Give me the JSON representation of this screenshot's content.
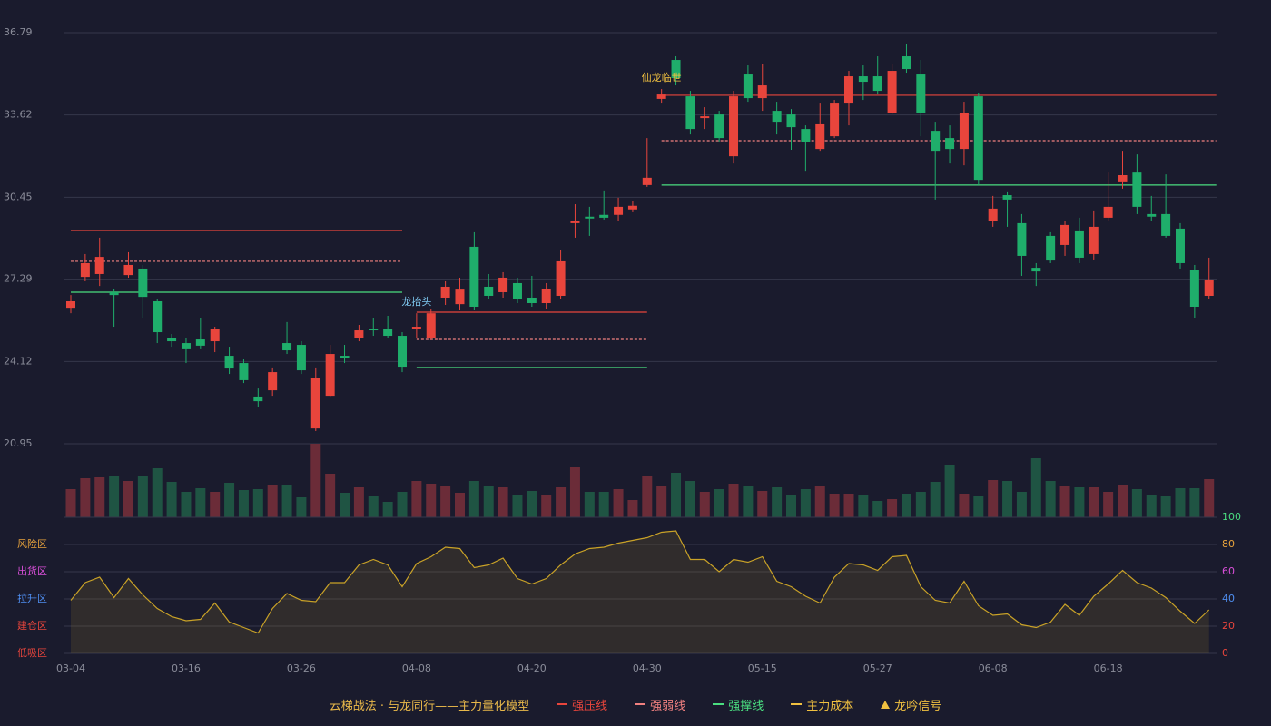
{
  "chart_data": {
    "type": "candlestick",
    "categories": [
      "03-04",
      null,
      null,
      null,
      null,
      null,
      null,
      null,
      "03-16",
      null,
      null,
      null,
      null,
      null,
      null,
      null,
      "03-26",
      null,
      null,
      null,
      null,
      null,
      null,
      null,
      "04-08",
      null,
      null,
      null,
      null,
      null,
      null,
      null,
      "04-20",
      null,
      null,
      null,
      null,
      null,
      null,
      null,
      "04-30",
      null,
      null,
      null,
      null,
      null,
      null,
      null,
      "05-15",
      null,
      null,
      null,
      null,
      null,
      null,
      null,
      "05-27",
      null,
      null,
      null,
      null,
      null,
      null,
      null,
      "06-08",
      null,
      null,
      null,
      null,
      null,
      null,
      null,
      "06-18",
      null,
      null,
      null,
      null,
      null,
      null,
      null
    ],
    "open": [
      26.19,
      27.38,
      27.49,
      26.79,
      27.45,
      27.7,
      26.44,
      25.04,
      24.83,
      24.97,
      24.9,
      24.34,
      24.06,
      22.77,
      23.01,
      24.83,
      24.76,
      21.54,
      22.8,
      24.34,
      25.04,
      25.39,
      25.39,
      25.11,
      25.39,
      25.04,
      26.58,
      26.33,
      28.54,
      27.0,
      26.79,
      27.14,
      26.58,
      26.37,
      26.65,
      29.45,
      29.7,
      29.77,
      29.77,
      29.98,
      30.92,
      34.24,
      35.74,
      34.34,
      33.5,
      33.64,
      32.03,
      35.18,
      34.27,
      33.78,
      33.64,
      33.08,
      32.31,
      32.8,
      34.06,
      35.11,
      35.11,
      33.71,
      35.88,
      35.18,
      33.01,
      32.73,
      32.31,
      34.34,
      29.52,
      30.53,
      29.45,
      27.73,
      28.96,
      28.61,
      29.17,
      28.26,
      29.66,
      31.06,
      31.4,
      29.8,
      29.8,
      29.24,
      27.63,
      26.65
    ],
    "close": [
      26.44,
      27.91,
      28.15,
      26.68,
      27.84,
      26.61,
      25.25,
      24.9,
      24.59,
      24.73,
      25.36,
      23.85,
      23.4,
      22.59,
      23.71,
      24.55,
      23.78,
      23.5,
      24.41,
      24.24,
      25.32,
      25.32,
      25.11,
      23.92,
      25.46,
      25.98,
      27.0,
      26.89,
      26.23,
      26.65,
      27.35,
      26.51,
      26.37,
      26.93,
      27.98,
      29.52,
      29.63,
      29.66,
      30.08,
      30.12,
      31.2,
      34.41,
      35.04,
      33.08,
      33.57,
      32.73,
      34.34,
      34.27,
      34.76,
      33.36,
      33.15,
      32.59,
      33.26,
      34.06,
      35.11,
      34.9,
      34.55,
      35.32,
      35.39,
      33.71,
      32.24,
      32.31,
      33.71,
      31.12,
      30.01,
      30.36,
      28.19,
      27.59,
      28.01,
      29.38,
      28.12,
      29.31,
      30.08,
      31.3,
      30.08,
      29.7,
      28.96,
      27.91,
      26.23,
      27.28
    ],
    "high": [
      26.68,
      28.26,
      28.89,
      26.93,
      28.33,
      27.84,
      26.51,
      25.18,
      25.04,
      25.81,
      25.46,
      24.69,
      24.2,
      23.08,
      23.89,
      25.64,
      24.9,
      23.89,
      24.76,
      24.76,
      25.53,
      25.81,
      25.88,
      25.25,
      25.98,
      26.16,
      27.21,
      27.35,
      29.1,
      27.49,
      27.56,
      27.35,
      27.42,
      27.14,
      28.43,
      30.18,
      30.08,
      30.71,
      30.43,
      30.29,
      32.73,
      34.62,
      35.88,
      34.55,
      33.92,
      33.78,
      34.55,
      35.53,
      35.6,
      34.13,
      33.85,
      33.22,
      34.06,
      34.2,
      35.32,
      35.53,
      35.88,
      35.6,
      36.37,
      35.74,
      33.36,
      33.22,
      34.13,
      34.48,
      30.5,
      30.64,
      29.8,
      27.91,
      29.1,
      29.52,
      29.66,
      29.94,
      31.4,
      32.24,
      32.1,
      30.5,
      31.33,
      29.45,
      27.84,
      28.12
    ],
    "low": [
      25.98,
      27.21,
      27.03,
      25.46,
      27.35,
      25.81,
      24.83,
      24.69,
      24.06,
      24.59,
      24.48,
      23.64,
      23.29,
      22.38,
      22.8,
      24.41,
      23.64,
      21.44,
      22.73,
      24.06,
      24.9,
      25.11,
      25.04,
      23.71,
      25.04,
      24.97,
      26.3,
      26.09,
      26.09,
      26.51,
      26.58,
      26.37,
      26.23,
      26.16,
      26.51,
      28.89,
      28.96,
      29.59,
      29.52,
      29.87,
      30.85,
      34.06,
      34.76,
      32.87,
      33.08,
      32.59,
      31.75,
      34.13,
      33.78,
      32.87,
      32.28,
      31.47,
      32.24,
      32.73,
      33.22,
      34.2,
      34.41,
      33.64,
      35.25,
      32.8,
      30.36,
      31.75,
      31.68,
      30.92,
      29.31,
      29.31,
      27.42,
      27.03,
      27.91,
      28.19,
      27.91,
      28.05,
      29.52,
      30.78,
      29.8,
      29.52,
      28.89,
      27.7,
      25.81,
      26.51
    ],
    "up_color": "#e8453c",
    "down_color": "#1fae6b",
    "ylim": [
      20.95,
      36.79
    ],
    "yticks": [
      20.95,
      24.12,
      27.29,
      30.45,
      33.62,
      36.79
    ],
    "grid": true,
    "levels": [
      {
        "from": 0,
        "to": 23,
        "strong_pressure": 29.17,
        "strong_weak": 27.98,
        "strong_support": 26.79
      },
      {
        "from": 24,
        "to": 40,
        "strong_pressure": 26.02,
        "strong_weak": 24.97,
        "strong_support": 23.89
      },
      {
        "from": 41,
        "to": 79,
        "strong_pressure": 34.38,
        "strong_weak": 32.63,
        "strong_support": 30.92
      }
    ],
    "annotations": [
      {
        "index": 24,
        "text": "龙抬头",
        "color": "#7ec8f0"
      },
      {
        "index": 41,
        "text": "仙龙临世",
        "color": "#f0c040"
      }
    ],
    "volume": {
      "values": [
        31,
        43,
        44,
        46,
        40,
        46,
        54,
        39,
        28,
        32,
        28,
        38,
        30,
        31,
        36,
        36,
        22,
        81,
        48,
        27,
        33,
        23,
        17,
        28,
        40,
        37,
        34,
        27,
        40,
        34,
        33,
        25,
        29,
        25,
        33,
        55,
        28,
        28,
        31,
        19,
        46,
        34,
        49,
        40,
        28,
        31,
        37,
        34,
        29,
        33,
        25,
        31,
        34,
        26,
        26,
        24,
        18,
        20,
        26,
        28,
        39,
        58,
        26,
        23,
        41,
        40,
        28,
        65,
        40,
        35,
        33,
        33,
        28,
        36,
        31,
        25,
        23,
        32,
        32,
        42
      ],
      "vlim": [
        0,
        100
      ]
    },
    "indicator": {
      "values": [
        39,
        52,
        56,
        41,
        55,
        43,
        33,
        27,
        24,
        25,
        37,
        23,
        19,
        15,
        33,
        44,
        39,
        38,
        52,
        52,
        65,
        69,
        65,
        49,
        66,
        71,
        78,
        77,
        63,
        65,
        70,
        55,
        51,
        55,
        65,
        73,
        77,
        78,
        81,
        83,
        85,
        89,
        90,
        69,
        69,
        60,
        69,
        67,
        71,
        53,
        49,
        42,
        37,
        56,
        66,
        65,
        61,
        71,
        72,
        49,
        39,
        37,
        53,
        35,
        28,
        29,
        21,
        19,
        23,
        36,
        28,
        42,
        51,
        61,
        52,
        48,
        41,
        31,
        22,
        32
      ],
      "color": "#c9a227",
      "ylim": [
        0,
        100
      ],
      "yticks": [
        0,
        20,
        40,
        60,
        80,
        100
      ],
      "ytick_colors": [
        "#e8453c",
        "#e8453c",
        "#4f8ef0",
        "#d94fd9",
        "#e8a33c",
        "#4ade80"
      ],
      "zones": [
        {
          "label": "风险区",
          "value": 80,
          "color": "#e8a33c"
        },
        {
          "label": "出货区",
          "value": 60,
          "color": "#d94fd9"
        },
        {
          "label": "拉升区",
          "value": 40,
          "color": "#4f8ef0"
        },
        {
          "label": "建仓区",
          "value": 20,
          "color": "#e8453c"
        },
        {
          "label": "低吸区",
          "value": 0,
          "color": "#e8453c"
        }
      ]
    },
    "legend": {
      "title": "云梯战法 · 与龙同行——主力量化模型",
      "title_color": "#e8b84a",
      "items": [
        {
          "name": "强压线",
          "color": "#e8453c",
          "style": "solid"
        },
        {
          "name": "强弱线",
          "color": "#f08080",
          "style": "dashed"
        },
        {
          "name": "强撑线",
          "color": "#4ade80",
          "style": "solid"
        },
        {
          "name": "主力成本",
          "color": "#f0c040",
          "style": "dashed"
        },
        {
          "name": "龙吟信号",
          "color": "#f0c040",
          "style": "triangle"
        }
      ]
    }
  }
}
